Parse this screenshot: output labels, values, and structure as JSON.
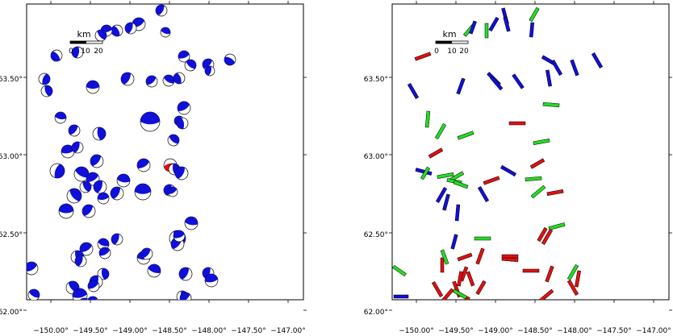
{
  "colors": {
    "mechanism": "#1010d8",
    "highlight": "#e01010",
    "stress_normal": "#22dd22",
    "frame": "#000000"
  },
  "map_left": {
    "lat_ticks": [
      "63.50°",
      "63.00°",
      "62.50°",
      "62.00°"
    ],
    "lon_ticks": [
      "−150.00°",
      "−149.50°",
      "−149.00°",
      "−148.50°",
      "−148.00°",
      "−147.50°",
      "−147.00°"
    ],
    "scale_bar": {
      "unit_label": "km",
      "tick_labels": [
        "0",
        "10",
        "20"
      ]
    }
  },
  "map_right": {
    "lat_ticks": [
      "63.50°",
      "63.00°",
      "62.50°",
      "62.00°"
    ],
    "lon_ticks": [
      "−150.00°",
      "−149.50°",
      "−149.00°",
      "−148.50°",
      "−148.00°",
      "−147.50°",
      "−147.00°"
    ],
    "scale_bar": {
      "unit_label": "km",
      "tick_labels": [
        "0",
        "10",
        "20"
      ]
    }
  }
}
